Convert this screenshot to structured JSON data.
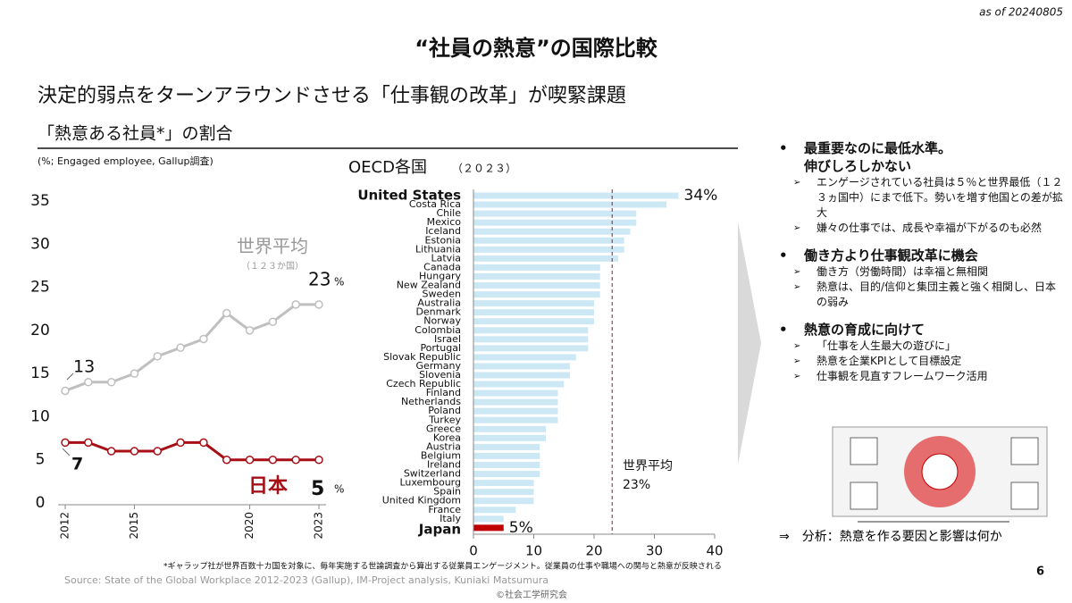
{
  "header": {
    "as_of": "as of 20240805",
    "title": "“社員の熱意”の国際比較",
    "subtitle": "決定的弱点をターンアラウンドさせる「仕事観の改革」が喫緊課題",
    "section": "「熱意ある社員*」の割合",
    "unit_note": "(%; Engaged employee, Gallup調査)"
  },
  "chart_data": [
    {
      "type": "line",
      "value_unit": "%",
      "x": [
        2012,
        2013,
        2014,
        2015,
        2016,
        2017,
        2018,
        2019,
        2020,
        2021,
        2022,
        2023
      ],
      "xlim": [
        2012,
        2023
      ],
      "xticks": [
        2012,
        2015,
        2020,
        2023
      ],
      "ylim": [
        0,
        35
      ],
      "yticks": [
        0,
        5,
        10,
        15,
        20,
        25,
        30,
        35
      ],
      "series": [
        {
          "name": "世界平均",
          "subtitle": "（１２３か国）",
          "color": "#bfbfbf",
          "values": [
            13,
            14,
            14,
            15,
            17,
            18,
            19,
            22,
            20,
            21,
            23,
            23
          ]
        },
        {
          "name": "日本",
          "color": "#a50f15",
          "values": [
            7,
            7,
            6,
            6,
            6,
            7,
            7,
            5,
            5,
            5,
            5,
            5
          ]
        }
      ]
    },
    {
      "type": "hbar",
      "title": "OECD各国",
      "subtitle": "（２０２３）",
      "categories": [
        "United States",
        "Costa Rica",
        "Chile",
        "Mexico",
        "Iceland",
        "Estonia",
        "Lithuania",
        "Latvia",
        "Canada",
        "Hungary",
        "New Zealand",
        "Sweden",
        "Australia",
        "Denmark",
        "Norway",
        "Colombia",
        "Israel",
        "Portugal",
        "Slovak Republic",
        "Germany",
        "Slovenia",
        "Czech Republic",
        "Finland",
        "Netherlands",
        "Poland",
        "Turkey",
        "Greece",
        "Korea",
        "Austria",
        "Belgium",
        "Ireland",
        "Switzerland",
        "Luxembourg",
        "Spain",
        "United Kingdom",
        "France",
        "Italy",
        "Japan"
      ],
      "values": [
        34,
        32,
        27,
        27,
        26,
        25,
        25,
        24,
        21,
        21,
        21,
        21,
        20,
        20,
        20,
        19,
        19,
        19,
        17,
        16,
        16,
        15,
        14,
        14,
        14,
        14,
        12,
        12,
        11,
        11,
        11,
        11,
        10,
        10,
        10,
        7,
        5,
        5
      ],
      "value_labels": [
        "34%",
        null,
        null,
        null,
        null,
        null,
        null,
        null,
        null,
        null,
        null,
        null,
        null,
        null,
        null,
        null,
        null,
        null,
        null,
        null,
        null,
        null,
        null,
        null,
        null,
        null,
        null,
        null,
        null,
        null,
        null,
        null,
        null,
        null,
        null,
        null,
        null,
        "5%"
      ],
      "colors": [
        "#cde8f5",
        "#cde8f5",
        "#cde8f5",
        "#cde8f5",
        "#cde8f5",
        "#cde8f5",
        "#cde8f5",
        "#cde8f5",
        "#cde8f5",
        "#cde8f5",
        "#cde8f5",
        "#cde8f5",
        "#cde8f5",
        "#cde8f5",
        "#cde8f5",
        "#cde8f5",
        "#cde8f5",
        "#cde8f5",
        "#cde8f5",
        "#cde8f5",
        "#cde8f5",
        "#cde8f5",
        "#cde8f5",
        "#cde8f5",
        "#cde8f5",
        "#cde8f5",
        "#cde8f5",
        "#cde8f5",
        "#cde8f5",
        "#cde8f5",
        "#cde8f5",
        "#cde8f5",
        "#cde8f5",
        "#cde8f5",
        "#cde8f5",
        "#cde8f5",
        "#cde8f5",
        "#c00000"
      ],
      "xlim": [
        0,
        40
      ],
      "xticks": [
        0,
        10,
        20,
        30,
        40
      ],
      "reference_line": {
        "value": 23,
        "label": "世界平均",
        "value_label": "23%",
        "color": "#a0404a"
      }
    }
  ],
  "panel": {
    "sections": [
      {
        "heading": [
          "最重要なのに最低水準。",
          "伸びしろしかない"
        ],
        "items": [
          "エンゲージされている社員は５％と世界最低（１２３ヵ国中）にまで低下。勢いを増す他国との差が拡大",
          "嫌々の仕事では、成長や幸福が下がるのも必然"
        ]
      },
      {
        "heading": [
          "働き方より仕事観改革に機会"
        ],
        "items": [
          "働き方（労働時間）は幸福と無相関",
          "熱意は、目的/信仰と集団主義と強く相関し、日本の弱み"
        ]
      },
      {
        "heading": [
          "熱意の育成に向けて"
        ],
        "items": [
          "「仕事を人生最大の遊びに」",
          "熱意を企業KPIとして目標設定",
          "仕事観を見直すフレームワーク活用"
        ]
      }
    ],
    "conclusion": "⇒　分析：熱意を作る要因と影響は何か"
  },
  "footer": {
    "footnote": "*ギャラップ社が世界百数十カ国を対象に、毎年実施する世論調査から算出する従業員エンゲージメント。従業員の仕事や職場への関与と熱意が反映される",
    "source": "Source: State of the Global Workplace 2012-2023 (Gallup), IM-Project analysis,  Kuniaki Matsumura",
    "copyright": "©社会工学研究会",
    "page": "6"
  }
}
